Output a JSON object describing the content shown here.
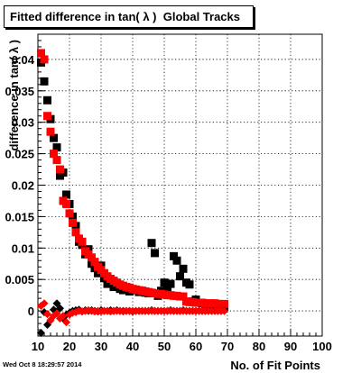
{
  "title": "Fitted difference in tan( λ )  Global Tracks",
  "timestamp": "Wed Oct  8 18:29:57 2014",
  "chart_data": {
    "type": "scatter",
    "xlabel": "No. of Fit Points",
    "ylabel": "difference in tan( λ )",
    "xlim": [
      10,
      100
    ],
    "ylim": [
      -0.004,
      0.044
    ],
    "grid": true,
    "x_ticks": [
      "10",
      "20",
      "30",
      "40",
      "50",
      "60",
      "70",
      "80",
      "90",
      "100"
    ],
    "y_ticks": [
      "0",
      "0.005",
      "0.01",
      "0.015",
      "0.02",
      "0.025",
      "0.03",
      "0.035",
      "0.04"
    ],
    "series": [
      {
        "color": "#000000",
        "marker": "square",
        "points": [
          [
            11,
            0.0395
          ],
          [
            12,
            0.0365
          ],
          [
            13,
            0.0335
          ],
          [
            14,
            0.0305
          ],
          [
            15,
            0.0275
          ],
          [
            16,
            0.026
          ],
          [
            17,
            0.0215
          ],
          [
            18,
            0.022
          ],
          [
            19,
            0.0185
          ],
          [
            20,
            0.017
          ],
          [
            21,
            0.015
          ],
          [
            22,
            0.0135
          ],
          [
            23,
            0.011
          ],
          [
            24,
            0.0105
          ],
          [
            25,
            0.009
          ],
          [
            26,
            0.0098
          ],
          [
            27,
            0.0075
          ],
          [
            28,
            0.0068
          ],
          [
            29,
            0.006
          ],
          [
            30,
            0.0072
          ],
          [
            31,
            0.0052
          ],
          [
            32,
            0.0043
          ],
          [
            33,
            0.0048
          ],
          [
            34,
            0.0038
          ],
          [
            35,
            0.0039
          ],
          [
            36,
            0.0035
          ],
          [
            37,
            0.0033
          ],
          [
            38,
            0.0036
          ],
          [
            39,
            0.0031
          ],
          [
            40,
            0.0034
          ],
          [
            41,
            0.0033
          ],
          [
            42,
            0.003
          ],
          [
            43,
            0.0032
          ],
          [
            44,
            0.0029
          ],
          [
            45,
            0.0028
          ],
          [
            46,
            0.0108
          ],
          [
            47,
            0.0092
          ],
          [
            48,
            0.0024
          ],
          [
            49,
            0.0032
          ],
          [
            50,
            0.0045
          ],
          [
            51,
            0.0035
          ],
          [
            52,
            0.0043
          ],
          [
            53,
            0.0087
          ],
          [
            54,
            0.008
          ],
          [
            55,
            0.0055
          ],
          [
            56,
            0.0067
          ],
          [
            57,
            0.0045
          ],
          [
            58,
            0.0042
          ],
          [
            59,
            0.0015
          ],
          [
            60,
            0.0018
          ],
          [
            61,
            0.0013
          ],
          [
            62,
            0.0012
          ],
          [
            63,
            0.0011
          ],
          [
            64,
            0.0009
          ],
          [
            65,
            0.0008
          ],
          [
            66,
            0.0009
          ],
          [
            67,
            0.0007
          ],
          [
            68,
            0.0008
          ],
          [
            69,
            0.0006
          ]
        ]
      },
      {
        "color": "#ff0000",
        "marker": "square",
        "points": [
          [
            11,
            0.041
          ],
          [
            12,
            0.04
          ],
          [
            13,
            0.031
          ],
          [
            14,
            0.0285
          ],
          [
            15,
            0.025
          ],
          [
            16,
            0.024
          ],
          [
            17,
            0.0225
          ],
          [
            18,
            0.0175
          ],
          [
            19,
            0.017
          ],
          [
            20,
            0.0155
          ],
          [
            21,
            0.014
          ],
          [
            22,
            0.0125
          ],
          [
            23,
            0.0115
          ],
          [
            24,
            0.011
          ],
          [
            25,
            0.0095
          ],
          [
            26,
            0.009
          ],
          [
            27,
            0.0085
          ],
          [
            28,
            0.0078
          ],
          [
            29,
            0.007
          ],
          [
            30,
            0.0065
          ],
          [
            31,
            0.006
          ],
          [
            32,
            0.0055
          ],
          [
            33,
            0.0051
          ],
          [
            34,
            0.0048
          ],
          [
            35,
            0.0045
          ],
          [
            36,
            0.0042
          ],
          [
            37,
            0.004
          ],
          [
            38,
            0.0038
          ],
          [
            39,
            0.0037
          ],
          [
            40,
            0.0035
          ],
          [
            41,
            0.0034
          ],
          [
            42,
            0.0033
          ],
          [
            43,
            0.0032
          ],
          [
            44,
            0.0031
          ],
          [
            45,
            0.003
          ],
          [
            46,
            0.0029
          ],
          [
            47,
            0.0028
          ],
          [
            48,
            0.0027
          ],
          [
            49,
            0.0027
          ],
          [
            50,
            0.0026
          ],
          [
            51,
            0.0025
          ],
          [
            52,
            0.0025
          ],
          [
            53,
            0.0024
          ],
          [
            54,
            0.0024
          ],
          [
            55,
            0.0023
          ],
          [
            56,
            0.0023
          ],
          [
            57,
            0.0015
          ],
          [
            58,
            0.0014
          ],
          [
            59,
            0.0014
          ],
          [
            60,
            0.0013
          ],
          [
            61,
            0.0013
          ],
          [
            62,
            0.0013
          ],
          [
            63,
            0.0012
          ],
          [
            64,
            0.0012
          ],
          [
            65,
            0.0012
          ],
          [
            66,
            0.0012
          ],
          [
            67,
            0.0011
          ],
          [
            68,
            0.0011
          ],
          [
            69,
            0.0011
          ]
        ]
      },
      {
        "color": "#000000",
        "marker": "diamond",
        "points": [
          [
            11,
            -0.0035
          ],
          [
            12,
            -0.0002
          ],
          [
            13,
            -0.0022
          ],
          [
            14,
            -0.0015
          ],
          [
            15,
            0.0002
          ],
          [
            16,
            0.0012
          ],
          [
            17,
            0.0004
          ],
          [
            18,
            -0.0012
          ],
          [
            19,
            -0.0006
          ],
          [
            20,
            -0.0003
          ],
          [
            21,
            0.0
          ],
          [
            22,
            0.0001
          ],
          [
            23,
            0.0002
          ],
          [
            24,
            -0.0001
          ],
          [
            25,
            0.0001
          ],
          [
            26,
            0.0
          ],
          [
            27,
            0.0001
          ],
          [
            28,
            0.0
          ],
          [
            29,
            -0.0001
          ],
          [
            30,
            0.0001
          ],
          [
            31,
            0.0
          ],
          [
            32,
            0.0
          ],
          [
            33,
            0.0001
          ],
          [
            34,
            0.0
          ],
          [
            35,
            0.0001
          ],
          [
            36,
            0.0
          ],
          [
            37,
            0.0
          ],
          [
            38,
            0.0
          ],
          [
            39,
            0.0
          ],
          [
            40,
            -0.0001
          ],
          [
            41,
            0.0
          ],
          [
            42,
            0.0
          ],
          [
            43,
            0.0
          ],
          [
            44,
            0.0
          ],
          [
            45,
            0.0
          ],
          [
            46,
            0.0001
          ],
          [
            47,
            0.0
          ],
          [
            48,
            0.0
          ],
          [
            49,
            0.0
          ],
          [
            50,
            0.0
          ],
          [
            51,
            0.0
          ],
          [
            52,
            0.0001
          ],
          [
            53,
            0.0
          ],
          [
            54,
            0.0
          ],
          [
            55,
            0.0
          ],
          [
            56,
            0.0001
          ],
          [
            57,
            0.0
          ],
          [
            58,
            0.0
          ],
          [
            59,
            0.0
          ],
          [
            60,
            0.0
          ],
          [
            61,
            0.0
          ],
          [
            62,
            0.0
          ],
          [
            63,
            0.0
          ],
          [
            64,
            0.0
          ],
          [
            65,
            0.0
          ],
          [
            66,
            0.0
          ],
          [
            67,
            0.0
          ],
          [
            68,
            0.0
          ],
          [
            69,
            0.0
          ]
        ]
      },
      {
        "color": "#ff0000",
        "marker": "diamond",
        "points": [
          [
            11,
            0.0008
          ],
          [
            12,
            0.0012
          ],
          [
            13,
            -0.0005
          ],
          [
            14,
            -0.0015
          ],
          [
            15,
            -0.0008
          ],
          [
            16,
            -0.0004
          ],
          [
            17,
            -0.0012
          ],
          [
            18,
            -0.0008
          ],
          [
            19,
            -0.0018
          ],
          [
            20,
            -0.0006
          ],
          [
            21,
            -0.0003
          ],
          [
            22,
            -0.0002
          ],
          [
            23,
            0.0
          ],
          [
            24,
            -0.0001
          ],
          [
            25,
            0.0
          ],
          [
            26,
            0.0001
          ],
          [
            27,
            0.0
          ],
          [
            28,
            -0.0001
          ],
          [
            29,
            0.0
          ],
          [
            30,
            -0.0001
          ],
          [
            31,
            0.0
          ],
          [
            32,
            0.0
          ],
          [
            33,
            -0.0001
          ],
          [
            34,
            0.0
          ],
          [
            35,
            0.0
          ],
          [
            36,
            0.0
          ],
          [
            37,
            -0.0001
          ],
          [
            38,
            0.0
          ],
          [
            39,
            0.0
          ],
          [
            40,
            0.0
          ],
          [
            41,
            0.0
          ],
          [
            42,
            0.0
          ],
          [
            43,
            0.0
          ],
          [
            44,
            0.0
          ],
          [
            45,
            0.0
          ],
          [
            46,
            0.0
          ],
          [
            47,
            0.0
          ],
          [
            48,
            0.0
          ],
          [
            49,
            0.0
          ],
          [
            50,
            0.0
          ],
          [
            51,
            0.0
          ],
          [
            52,
            0.0
          ],
          [
            53,
            0.0
          ],
          [
            54,
            0.0
          ],
          [
            55,
            0.0
          ],
          [
            56,
            0.0
          ],
          [
            57,
            0.0
          ],
          [
            58,
            0.0
          ],
          [
            59,
            0.0
          ],
          [
            60,
            0.0
          ],
          [
            61,
            0.0
          ],
          [
            62,
            0.0
          ],
          [
            63,
            0.0
          ],
          [
            64,
            0.0
          ],
          [
            65,
            0.0
          ],
          [
            66,
            0.0
          ],
          [
            67,
            0.0
          ],
          [
            68,
            0.0
          ],
          [
            69,
            0.0
          ]
        ]
      }
    ]
  }
}
